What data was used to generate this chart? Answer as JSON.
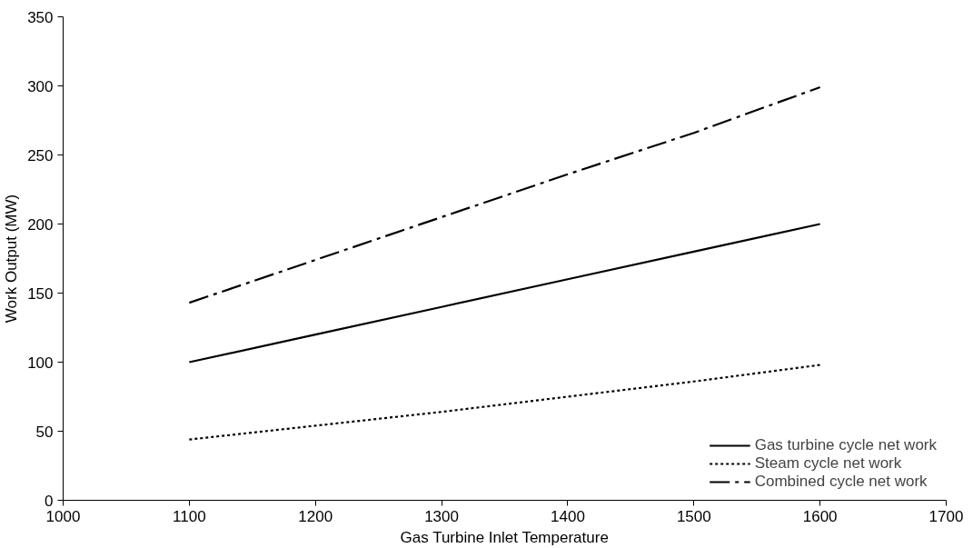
{
  "chart_data": {
    "type": "line",
    "xlabel": "Gas Turbine Inlet Temperature",
    "ylabel": "Work Output (MW)",
    "x": [
      1100,
      1200,
      1300,
      1400,
      1500,
      1600
    ],
    "series": [
      {
        "name": "Gas turbine cycle net work",
        "color": "#000000",
        "line_style": "solid",
        "values": [
          100,
          120,
          140,
          160,
          180,
          200
        ]
      },
      {
        "name": "Steam cycle net work",
        "color": "#000000",
        "line_style": "dotted",
        "values": [
          44,
          54,
          64,
          75,
          86,
          98
        ]
      },
      {
        "name": "Combined cycle net work",
        "color": "#000000",
        "line_style": "dashdot",
        "values": [
          143,
          174,
          205,
          236,
          266,
          299
        ]
      }
    ],
    "xlim": [
      1000,
      1700
    ],
    "xticks": [
      1000,
      1100,
      1200,
      1300,
      1400,
      1500,
      1600,
      1700
    ],
    "ylim": [
      0,
      350
    ],
    "yticks": [
      0,
      50,
      100,
      150,
      200,
      250,
      300,
      350
    ],
    "grid": false,
    "legend": "bottom right",
    "marker": "none"
  }
}
